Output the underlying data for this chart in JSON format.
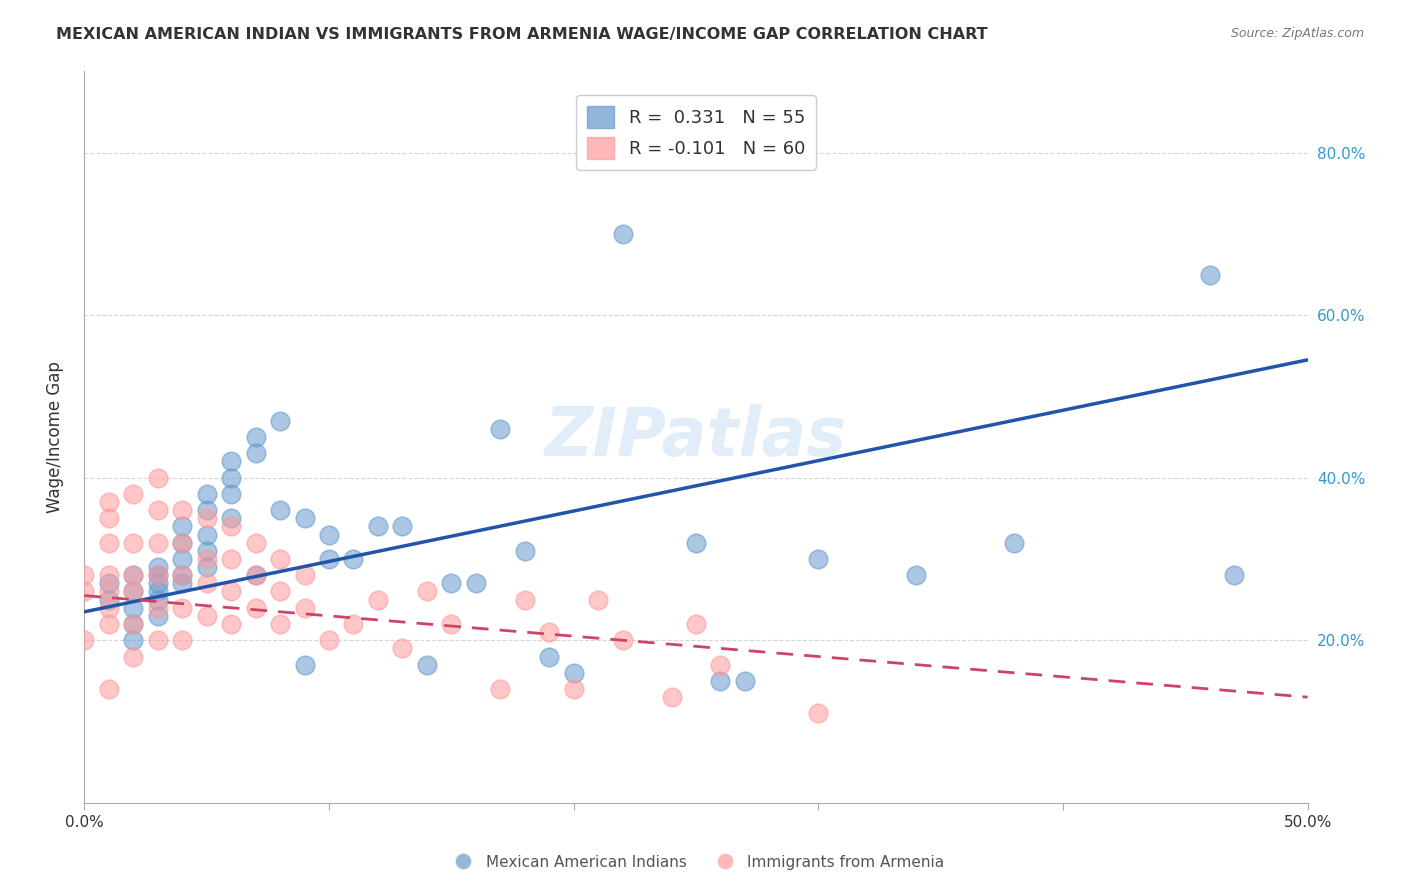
{
  "title": "MEXICAN AMERICAN INDIAN VS IMMIGRANTS FROM ARMENIA WAGE/INCOME GAP CORRELATION CHART",
  "source": "Source: ZipAtlas.com",
  "xlabel_bottom": "",
  "ylabel": "Wage/Income Gap",
  "xlim": [
    0.0,
    0.5
  ],
  "ylim": [
    0.0,
    0.9
  ],
  "xtick_labels": [
    "0.0%",
    "50.0%"
  ],
  "ytick_labels_right": [
    "20.0%",
    "40.0%",
    "60.0%",
    "80.0%"
  ],
  "ytick_vals_right": [
    0.2,
    0.4,
    0.6,
    0.8
  ],
  "legend1_text": "R =  0.331   N = 55",
  "legend2_text": "R = -0.101   N = 60",
  "legend_bottom1": "Mexican American Indians",
  "legend_bottom2": "Immigrants from Armenia",
  "blue_color": "#6699CC",
  "pink_color": "#FF9999",
  "blue_line_color": "#2255AA",
  "pink_line_color": "#CC4466",
  "watermark": "ZIPatlas",
  "blue_scatter_x": [
    0.01,
    0.01,
    0.02,
    0.02,
    0.02,
    0.02,
    0.02,
    0.03,
    0.03,
    0.03,
    0.03,
    0.03,
    0.03,
    0.04,
    0.04,
    0.04,
    0.04,
    0.04,
    0.05,
    0.05,
    0.05,
    0.05,
    0.05,
    0.06,
    0.06,
    0.06,
    0.06,
    0.07,
    0.07,
    0.07,
    0.08,
    0.08,
    0.09,
    0.09,
    0.1,
    0.1,
    0.11,
    0.12,
    0.13,
    0.14,
    0.15,
    0.16,
    0.17,
    0.18,
    0.19,
    0.2,
    0.22,
    0.25,
    0.26,
    0.27,
    0.3,
    0.34,
    0.38,
    0.46,
    0.47
  ],
  "blue_scatter_y": [
    0.27,
    0.25,
    0.28,
    0.26,
    0.24,
    0.22,
    0.2,
    0.29,
    0.28,
    0.27,
    0.26,
    0.25,
    0.23,
    0.34,
    0.32,
    0.3,
    0.28,
    0.27,
    0.38,
    0.36,
    0.33,
    0.31,
    0.29,
    0.42,
    0.4,
    0.38,
    0.35,
    0.45,
    0.43,
    0.28,
    0.47,
    0.36,
    0.35,
    0.17,
    0.33,
    0.3,
    0.3,
    0.34,
    0.34,
    0.17,
    0.27,
    0.27,
    0.46,
    0.31,
    0.18,
    0.16,
    0.7,
    0.32,
    0.15,
    0.15,
    0.3,
    0.28,
    0.32,
    0.65,
    0.28
  ],
  "pink_scatter_x": [
    0.0,
    0.0,
    0.0,
    0.01,
    0.01,
    0.01,
    0.01,
    0.01,
    0.01,
    0.01,
    0.01,
    0.02,
    0.02,
    0.02,
    0.02,
    0.02,
    0.02,
    0.03,
    0.03,
    0.03,
    0.03,
    0.03,
    0.03,
    0.04,
    0.04,
    0.04,
    0.04,
    0.04,
    0.05,
    0.05,
    0.05,
    0.05,
    0.06,
    0.06,
    0.06,
    0.06,
    0.07,
    0.07,
    0.07,
    0.08,
    0.08,
    0.08,
    0.09,
    0.09,
    0.1,
    0.11,
    0.12,
    0.13,
    0.14,
    0.15,
    0.17,
    0.18,
    0.19,
    0.2,
    0.21,
    0.22,
    0.24,
    0.25,
    0.26,
    0.3
  ],
  "pink_scatter_y": [
    0.28,
    0.26,
    0.2,
    0.37,
    0.35,
    0.32,
    0.28,
    0.26,
    0.24,
    0.22,
    0.14,
    0.38,
    0.32,
    0.28,
    0.26,
    0.22,
    0.18,
    0.4,
    0.36,
    0.32,
    0.28,
    0.24,
    0.2,
    0.36,
    0.32,
    0.28,
    0.24,
    0.2,
    0.35,
    0.3,
    0.27,
    0.23,
    0.34,
    0.3,
    0.26,
    0.22,
    0.32,
    0.28,
    0.24,
    0.3,
    0.26,
    0.22,
    0.28,
    0.24,
    0.2,
    0.22,
    0.25,
    0.19,
    0.26,
    0.22,
    0.14,
    0.25,
    0.21,
    0.14,
    0.25,
    0.2,
    0.13,
    0.22,
    0.17,
    0.11
  ],
  "blue_line_x": [
    0.0,
    0.5
  ],
  "blue_line_y": [
    0.235,
    0.545
  ],
  "pink_line_x": [
    0.0,
    0.5
  ],
  "pink_line_y": [
    0.255,
    0.13
  ],
  "background_color": "#FFFFFF",
  "grid_color": "#CCCCCC"
}
